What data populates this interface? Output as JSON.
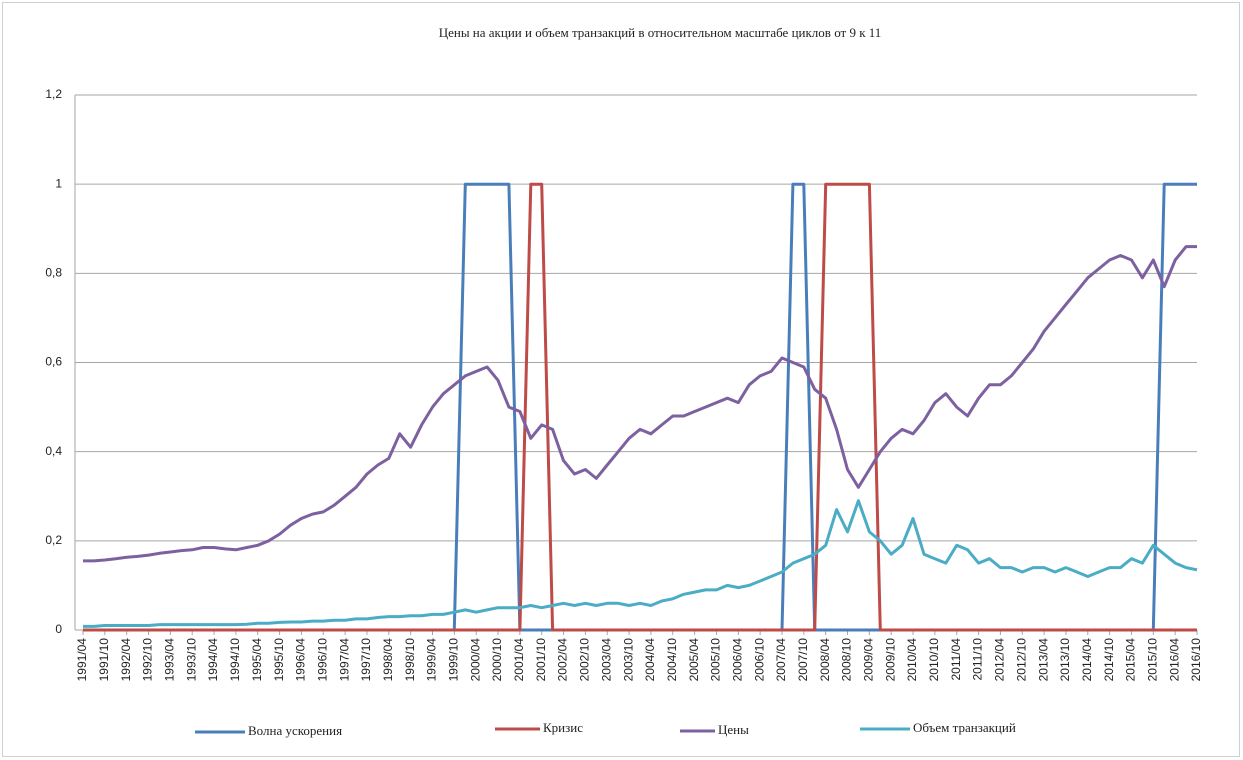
{
  "chart_data": {
    "type": "line",
    "title": "Цены на акции и объем транзакций в относительном масштабе циклов от 9 к 11",
    "categories": [
      "1991/04",
      null,
      "1991/10",
      null,
      "1992/04",
      null,
      "1992/10",
      null,
      "1993/04",
      null,
      "1993/10",
      null,
      "1994/04",
      null,
      "1994/10",
      null,
      "1995/04",
      null,
      "1995/10",
      null,
      "1996/04",
      null,
      "1996/10",
      null,
      "1997/04",
      null,
      "1997/10",
      null,
      "1998/04",
      null,
      "1998/10",
      null,
      "1999/04",
      null,
      "1999/10",
      null,
      "2000/04",
      null,
      "2000/10",
      null,
      "2001/04",
      null,
      "2001/10",
      null,
      "2002/04",
      null,
      "2002/10",
      null,
      "2003/04",
      null,
      "2003/10",
      null,
      "2004/04",
      null,
      "2004/10",
      null,
      "2005/04",
      null,
      "2005/10",
      null,
      "2006/04",
      null,
      "2006/10",
      null,
      "2007/04",
      null,
      "2007/10",
      null,
      "2008/04",
      null,
      "2008/10",
      null,
      "2009/04",
      null,
      "2009/10",
      null,
      "2010/04",
      null,
      "2010/10",
      null,
      "2011/04",
      null,
      "2011/10",
      null,
      "2012/04",
      null,
      "2012/10",
      null,
      "2013/04",
      null,
      "2013/10",
      null,
      "2014/04",
      null,
      "2014/10",
      null,
      "2015/04",
      null,
      "2015/10",
      null,
      "2016/04",
      null,
      "2016/10"
    ],
    "series": [
      {
        "name": "Волна ускорения",
        "color": "#4a7ebb",
        "values": [
          0,
          0,
          0,
          0,
          0,
          0,
          0,
          0,
          0,
          0,
          0,
          0,
          0,
          0,
          0,
          0,
          0,
          0,
          0,
          0,
          0,
          0,
          0,
          0,
          0,
          0,
          0,
          0,
          0,
          0,
          0,
          0,
          0,
          0,
          0,
          1,
          1,
          1,
          1,
          1,
          0,
          0,
          0,
          0,
          0,
          0,
          0,
          0,
          0,
          0,
          0,
          0,
          0,
          0,
          0,
          0,
          0,
          0,
          0,
          0,
          0,
          0,
          0,
          0,
          0,
          1,
          1,
          0,
          0,
          0,
          0,
          0,
          0,
          0,
          0,
          0,
          0,
          0,
          0,
          0,
          0,
          0,
          0,
          0,
          0,
          0,
          0,
          0,
          0,
          0,
          0,
          0,
          0,
          0,
          0,
          0,
          0,
          0,
          0,
          1,
          1,
          1,
          1
        ]
      },
      {
        "name": "Кризис",
        "color": "#be4b48",
        "values": [
          0,
          0,
          0,
          0,
          0,
          0,
          0,
          0,
          0,
          0,
          0,
          0,
          0,
          0,
          0,
          0,
          0,
          0,
          0,
          0,
          0,
          0,
          0,
          0,
          0,
          0,
          0,
          0,
          0,
          0,
          0,
          0,
          0,
          0,
          0,
          0,
          0,
          0,
          0,
          0,
          0,
          1,
          1,
          0,
          0,
          0,
          0,
          0,
          0,
          0,
          0,
          0,
          0,
          0,
          0,
          0,
          0,
          0,
          0,
          0,
          0,
          0,
          0,
          0,
          0,
          0,
          0,
          0,
          1,
          1,
          1,
          1,
          1,
          0,
          0,
          0,
          0,
          0,
          0,
          0,
          0,
          0,
          0,
          0,
          0,
          0,
          0,
          0,
          0,
          0,
          0,
          0,
          0,
          0,
          0,
          0,
          0,
          0,
          0,
          0,
          0,
          0,
          0
        ]
      },
      {
        "name": "Цены",
        "color": "#7d60a0",
        "values": [
          0.155,
          0.155,
          0.157,
          0.16,
          0.163,
          0.165,
          0.168,
          0.172,
          0.175,
          0.178,
          0.18,
          0.185,
          0.185,
          0.182,
          0.18,
          0.185,
          0.19,
          0.2,
          0.215,
          0.235,
          0.25,
          0.26,
          0.265,
          0.28,
          0.3,
          0.32,
          0.35,
          0.37,
          0.385,
          0.44,
          0.41,
          0.46,
          0.5,
          0.53,
          0.55,
          0.57,
          0.58,
          0.59,
          0.56,
          0.5,
          0.49,
          0.43,
          0.46,
          0.45,
          0.38,
          0.35,
          0.36,
          0.34,
          0.37,
          0.4,
          0.43,
          0.45,
          0.44,
          0.46,
          0.48,
          0.48,
          0.49,
          0.5,
          0.51,
          0.52,
          0.51,
          0.55,
          0.57,
          0.58,
          0.61,
          0.6,
          0.59,
          0.54,
          0.52,
          0.45,
          0.36,
          0.32,
          0.36,
          0.4,
          0.43,
          0.45,
          0.44,
          0.47,
          0.51,
          0.53,
          0.5,
          0.48,
          0.52,
          0.55,
          0.55,
          0.57,
          0.6,
          0.63,
          0.67,
          0.7,
          0.73,
          0.76,
          0.79,
          0.81,
          0.83,
          0.84,
          0.83,
          0.79,
          0.83,
          0.77,
          0.83,
          0.86,
          0.86
        ]
      },
      {
        "name": "Объем транзакций",
        "color": "#4bacc6",
        "values": [
          0.008,
          0.008,
          0.01,
          0.01,
          0.01,
          0.01,
          0.01,
          0.012,
          0.012,
          0.012,
          0.012,
          0.012,
          0.012,
          0.012,
          0.012,
          0.013,
          0.015,
          0.015,
          0.017,
          0.018,
          0.018,
          0.02,
          0.02,
          0.022,
          0.022,
          0.025,
          0.025,
          0.028,
          0.03,
          0.03,
          0.032,
          0.032,
          0.035,
          0.035,
          0.04,
          0.045,
          0.04,
          0.045,
          0.05,
          0.05,
          0.05,
          0.055,
          0.05,
          0.055,
          0.06,
          0.055,
          0.06,
          0.055,
          0.06,
          0.06,
          0.055,
          0.06,
          0.055,
          0.065,
          0.07,
          0.08,
          0.085,
          0.09,
          0.09,
          0.1,
          0.095,
          0.1,
          0.11,
          0.12,
          0.13,
          0.15,
          0.16,
          0.17,
          0.19,
          0.27,
          0.22,
          0.29,
          0.22,
          0.2,
          0.17,
          0.19,
          0.25,
          0.17,
          0.16,
          0.15,
          0.19,
          0.18,
          0.15,
          0.16,
          0.14,
          0.14,
          0.13,
          0.14,
          0.14,
          0.13,
          0.14,
          0.13,
          0.12,
          0.13,
          0.14,
          0.14,
          0.16,
          0.15,
          0.19,
          0.17,
          0.15,
          0.14,
          0.135
        ]
      }
    ],
    "ylim": [
      0,
      1.2
    ],
    "yticks": [
      0,
      {
        "value": 0.2,
        "label": "0,2"
      },
      {
        "value": 0.4,
        "label": "0,4"
      },
      {
        "value": 0.6,
        "label": "0,6"
      },
      {
        "value": 0.8,
        "label": "0,8"
      },
      1,
      {
        "value": 1.2,
        "label": "1,2"
      }
    ],
    "grid": true,
    "legend": "bottom"
  }
}
